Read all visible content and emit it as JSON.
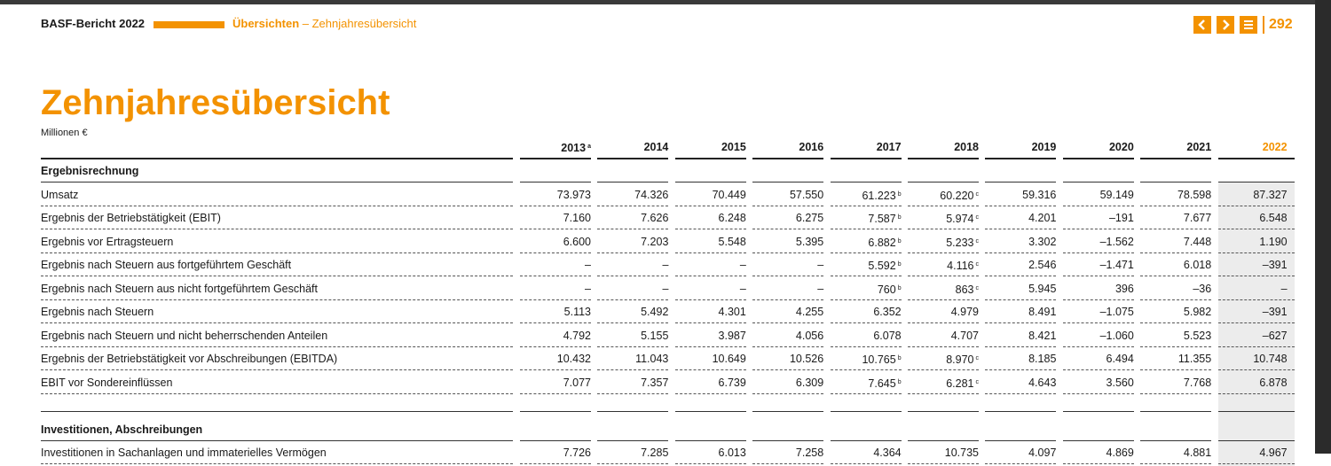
{
  "header": {
    "report": "BASF-Bericht 2022",
    "section": "Übersichten",
    "subsection": "– Zehnjahresübersicht",
    "page": "292"
  },
  "title": "Zehnjahresübersicht",
  "unit": "Millionen €",
  "table": {
    "years": [
      {
        "label": "2013",
        "note": "a"
      },
      {
        "label": "2014"
      },
      {
        "label": "2015"
      },
      {
        "label": "2016"
      },
      {
        "label": "2017"
      },
      {
        "label": "2018"
      },
      {
        "label": "2019"
      },
      {
        "label": "2020"
      },
      {
        "label": "2021"
      },
      {
        "label": "2022"
      }
    ],
    "sections": [
      {
        "title": "Ergebnisrechnung",
        "rows": [
          {
            "label": "Umsatz",
            "values": [
              "73.973",
              "74.326",
              "70.449",
              "57.550",
              "61.223",
              "60.220",
              "59.316",
              "59.149",
              "78.598",
              "87.327"
            ],
            "notes": {
              "4": "b",
              "5": "c"
            }
          },
          {
            "label": "Ergebnis der Betriebstätigkeit (EBIT)",
            "values": [
              "7.160",
              "7.626",
              "6.248",
              "6.275",
              "7.587",
              "5.974",
              "4.201",
              "–191",
              "7.677",
              "6.548"
            ],
            "notes": {
              "4": "b",
              "5": "c"
            }
          },
          {
            "label": "Ergebnis vor Ertragsteuern",
            "values": [
              "6.600",
              "7.203",
              "5.548",
              "5.395",
              "6.882",
              "5.233",
              "3.302",
              "–1.562",
              "7.448",
              "1.190"
            ],
            "notes": {
              "4": "b",
              "5": "c"
            }
          },
          {
            "label": "Ergebnis nach Steuern aus fortgeführtem Geschäft",
            "values": [
              "–",
              "–",
              "–",
              "–",
              "5.592",
              "4.116",
              "2.546",
              "–1.471",
              "6.018",
              "–391"
            ],
            "notes": {
              "4": "b",
              "5": "c"
            }
          },
          {
            "label": "Ergebnis nach Steuern aus nicht fortgeführtem Geschäft",
            "values": [
              "–",
              "–",
              "–",
              "–",
              "760",
              "863",
              "5.945",
              "396",
              "–36",
              "–"
            ],
            "notes": {
              "4": "b",
              "5": "c"
            }
          },
          {
            "label": "Ergebnis nach Steuern",
            "values": [
              "5.113",
              "5.492",
              "4.301",
              "4.255",
              "6.352",
              "4.979",
              "8.491",
              "–1.075",
              "5.982",
              "–391"
            ]
          },
          {
            "label": "Ergebnis nach Steuern und nicht beherrschenden Anteilen",
            "values": [
              "4.792",
              "5.155",
              "3.987",
              "4.056",
              "6.078",
              "4.707",
              "8.421",
              "–1.060",
              "5.523",
              "–627"
            ]
          },
          {
            "label": "Ergebnis der Betriebstätigkeit vor Abschreibungen (EBITDA)",
            "values": [
              "10.432",
              "11.043",
              "10.649",
              "10.526",
              "10.765",
              "8.970",
              "8.185",
              "6.494",
              "11.355",
              "10.748"
            ],
            "notes": {
              "4": "b",
              "5": "c"
            }
          },
          {
            "label": "EBIT vor Sondereinflüssen",
            "values": [
              "7.077",
              "7.357",
              "6.739",
              "6.309",
              "7.645",
              "6.281",
              "4.643",
              "3.560",
              "7.768",
              "6.878"
            ],
            "notes": {
              "4": "b",
              "5": "c"
            }
          }
        ]
      },
      {
        "title": "Investitionen, Abschreibungen",
        "rows": [
          {
            "label": "Investitionen in Sachanlagen und immaterielles Vermögen",
            "values": [
              "7.726",
              "7.285",
              "6.013",
              "7.258",
              "4.364",
              "10.735",
              "4.097",
              "4.869",
              "4.881",
              "4.967"
            ]
          }
        ]
      }
    ]
  }
}
